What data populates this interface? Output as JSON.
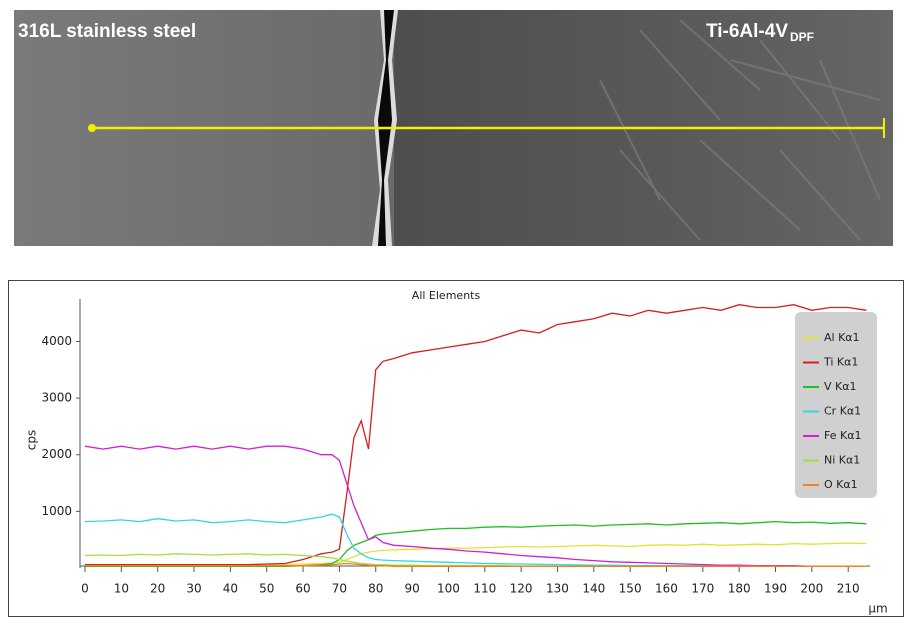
{
  "image": {
    "left_label": "316L stainless steel",
    "right_label": "Ti-6Al-4V",
    "right_label_subscript": "DPF"
  },
  "chart_data": {
    "type": "line",
    "title": "All Elements",
    "y_label": "cps",
    "x_label": "µm",
    "x": [
      0,
      5,
      10,
      15,
      20,
      25,
      30,
      35,
      40,
      45,
      50,
      55,
      60,
      65,
      68,
      70,
      72,
      74,
      76,
      78,
      80,
      82,
      85,
      90,
      95,
      100,
      105,
      110,
      115,
      120,
      125,
      130,
      135,
      140,
      145,
      150,
      155,
      160,
      165,
      170,
      175,
      180,
      185,
      190,
      195,
      200,
      205,
      210,
      215
    ],
    "series": [
      {
        "name": "Al Kα1",
        "color": "#e8e030",
        "values": [
          60,
          60,
          60,
          60,
          60,
          60,
          60,
          60,
          60,
          60,
          60,
          60,
          70,
          80,
          90,
          100,
          150,
          200,
          250,
          280,
          300,
          310,
          320,
          330,
          340,
          350,
          350,
          360,
          370,
          380,
          370,
          380,
          390,
          400,
          390,
          380,
          400,
          410,
          400,
          420,
          400,
          410,
          420,
          410,
          430,
          420,
          430,
          440,
          430
        ]
      },
      {
        "name": "Ti Kα1",
        "color": "#d42020",
        "values": [
          60,
          60,
          60,
          60,
          60,
          60,
          60,
          60,
          60,
          60,
          70,
          80,
          150,
          250,
          280,
          330,
          1300,
          2300,
          2600,
          2100,
          3500,
          3650,
          3700,
          3800,
          3850,
          3900,
          3950,
          4000,
          4100,
          4200,
          4150,
          4300,
          4350,
          4400,
          4500,
          4450,
          4550,
          4500,
          4550,
          4600,
          4550,
          4650,
          4600,
          4600,
          4650,
          4550,
          4600,
          4600,
          4550
        ]
      },
      {
        "name": "V Kα1",
        "color": "#20c020",
        "values": [
          30,
          30,
          30,
          30,
          30,
          30,
          30,
          30,
          30,
          30,
          30,
          30,
          40,
          60,
          80,
          150,
          300,
          400,
          450,
          500,
          580,
          600,
          620,
          650,
          680,
          700,
          700,
          720,
          730,
          720,
          740,
          750,
          760,
          740,
          760,
          770,
          780,
          760,
          780,
          790,
          800,
          780,
          800,
          820,
          800,
          810,
          790,
          800,
          780
        ]
      },
      {
        "name": "Cr Kα1",
        "color": "#30d8e0",
        "values": [
          820,
          830,
          850,
          820,
          870,
          830,
          850,
          800,
          820,
          850,
          820,
          800,
          850,
          900,
          950,
          900,
          600,
          350,
          250,
          180,
          150,
          140,
          130,
          120,
          110,
          100,
          90,
          80,
          75,
          70,
          65,
          60,
          55,
          50,
          50,
          45,
          45,
          40,
          40,
          40,
          35,
          35,
          35,
          30,
          30,
          30,
          30,
          30,
          30
        ]
      },
      {
        "name": "Fe Kα1",
        "color": "#d020d0",
        "values": [
          2150,
          2100,
          2150,
          2100,
          2150,
          2100,
          2150,
          2100,
          2150,
          2100,
          2150,
          2150,
          2100,
          2000,
          2000,
          1900,
          1500,
          1100,
          800,
          500,
          550,
          450,
          400,
          380,
          350,
          330,
          300,
          280,
          250,
          220,
          200,
          180,
          150,
          130,
          110,
          100,
          90,
          80,
          70,
          60,
          50,
          50,
          40,
          40,
          40,
          30,
          30,
          30,
          30
        ]
      },
      {
        "name": "Ni Kα1",
        "color": "#a0e040",
        "values": [
          220,
          230,
          220,
          240,
          230,
          250,
          240,
          230,
          240,
          250,
          230,
          240,
          220,
          200,
          180,
          150,
          120,
          100,
          80,
          70,
          60,
          60,
          50,
          50,
          45,
          45,
          40,
          40,
          40,
          35,
          35,
          35,
          30,
          30,
          30,
          30,
          30,
          30,
          30,
          30,
          30,
          30,
          30,
          30,
          30,
          30,
          30,
          30,
          30
        ]
      },
      {
        "name": "O Kα1",
        "color": "#f08020",
        "values": [
          40,
          40,
          40,
          40,
          40,
          40,
          40,
          40,
          40,
          40,
          40,
          40,
          40,
          50,
          60,
          70,
          80,
          70,
          60,
          50,
          40,
          40,
          30,
          30,
          30,
          30,
          30,
          30,
          30,
          30,
          30,
          30,
          30,
          30,
          30,
          30,
          30,
          30,
          30,
          30,
          30,
          30,
          30,
          30,
          30,
          30,
          30,
          30,
          30
        ]
      }
    ],
    "xlim": [
      0,
      216
    ],
    "ylim": [
      0,
      4750
    ],
    "xticks": [
      0,
      10,
      20,
      30,
      40,
      50,
      60,
      70,
      80,
      90,
      100,
      110,
      120,
      130,
      140,
      150,
      160,
      170,
      180,
      190,
      200,
      210
    ],
    "yticks": [
      1000,
      2000,
      3000,
      4000
    ],
    "legend": "top-right"
  }
}
